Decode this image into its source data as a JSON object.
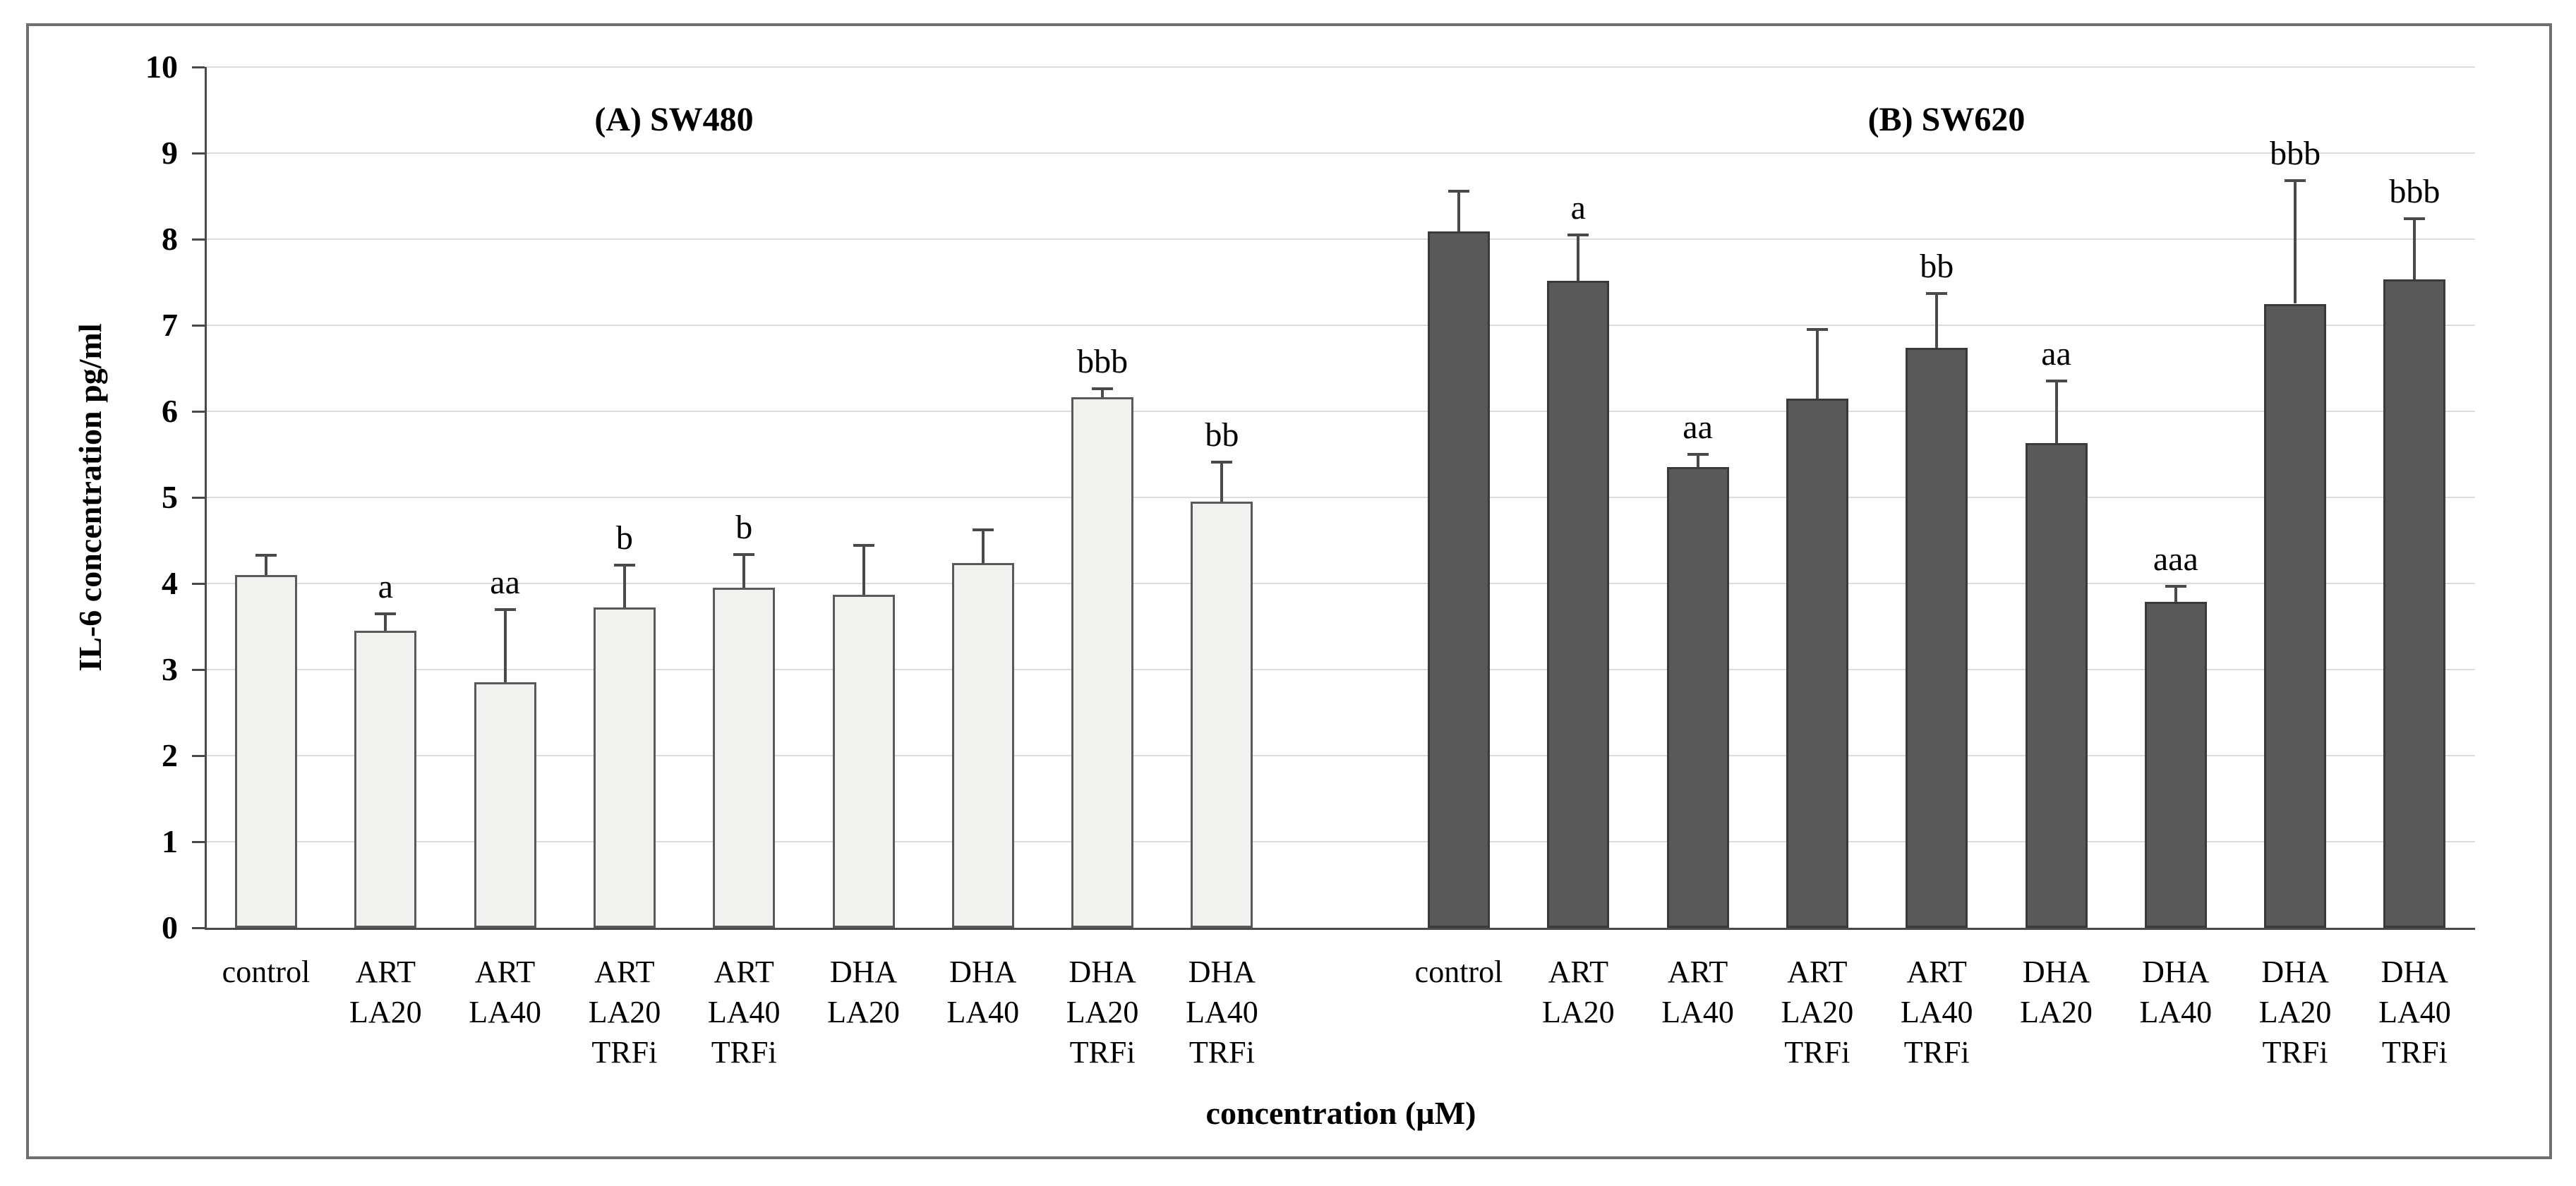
{
  "figure": {
    "background": "#ffffff",
    "border_color": "#6f6f6f",
    "gridline_color": "#dcdcdc",
    "axis_color": "#4a4a4a",
    "error_bar_color": "#4a4a4a",
    "text_color": "#000000"
  },
  "chart_data": {
    "type": "bar",
    "title": "",
    "xlabel": "concentration (µM)",
    "ylabel": "IL-6 concentration pg/ml",
    "ylim": [
      0,
      10
    ],
    "ytick_step": 1,
    "grid": true,
    "legend_position": "none",
    "categories": [
      "control",
      "ART\nLA20",
      "ART\nLA40",
      "ART\nLA20\nTRFi",
      "ART\nLA40\nTRFi",
      "DHA\nLA20",
      "DHA\nLA40",
      "DHA\nLA20\nTRFi",
      "DHA\nLA40\nTRFi"
    ],
    "series": [
      {
        "name": "(A) SW480",
        "bar_fill": "#f1f1ef",
        "bar_border": "#595959",
        "values": [
          4.1,
          3.45,
          2.85,
          3.72,
          3.95,
          3.87,
          4.24,
          6.16,
          4.95
        ],
        "errors_plus": [
          0.23,
          0.2,
          0.85,
          0.49,
          0.39,
          0.57,
          0.38,
          0.1,
          0.46
        ],
        "sig_letters": [
          "",
          "a",
          "aa",
          "b",
          "b",
          "",
          "",
          "bbb",
          "bb"
        ]
      },
      {
        "name": "(B) SW620",
        "bar_fill": "#595959",
        "bar_border": "#3a3a3a",
        "values": [
          8.09,
          7.52,
          5.35,
          6.15,
          6.74,
          5.63,
          3.79,
          7.25,
          7.53
        ],
        "errors_plus": [
          0.47,
          0.53,
          0.15,
          0.8,
          0.63,
          0.72,
          0.18,
          1.43,
          0.71
        ],
        "sig_letters": [
          "",
          "a",
          "aa",
          "",
          "bb",
          "aa",
          "aaa",
          "bbb",
          "bbb"
        ]
      }
    ]
  }
}
